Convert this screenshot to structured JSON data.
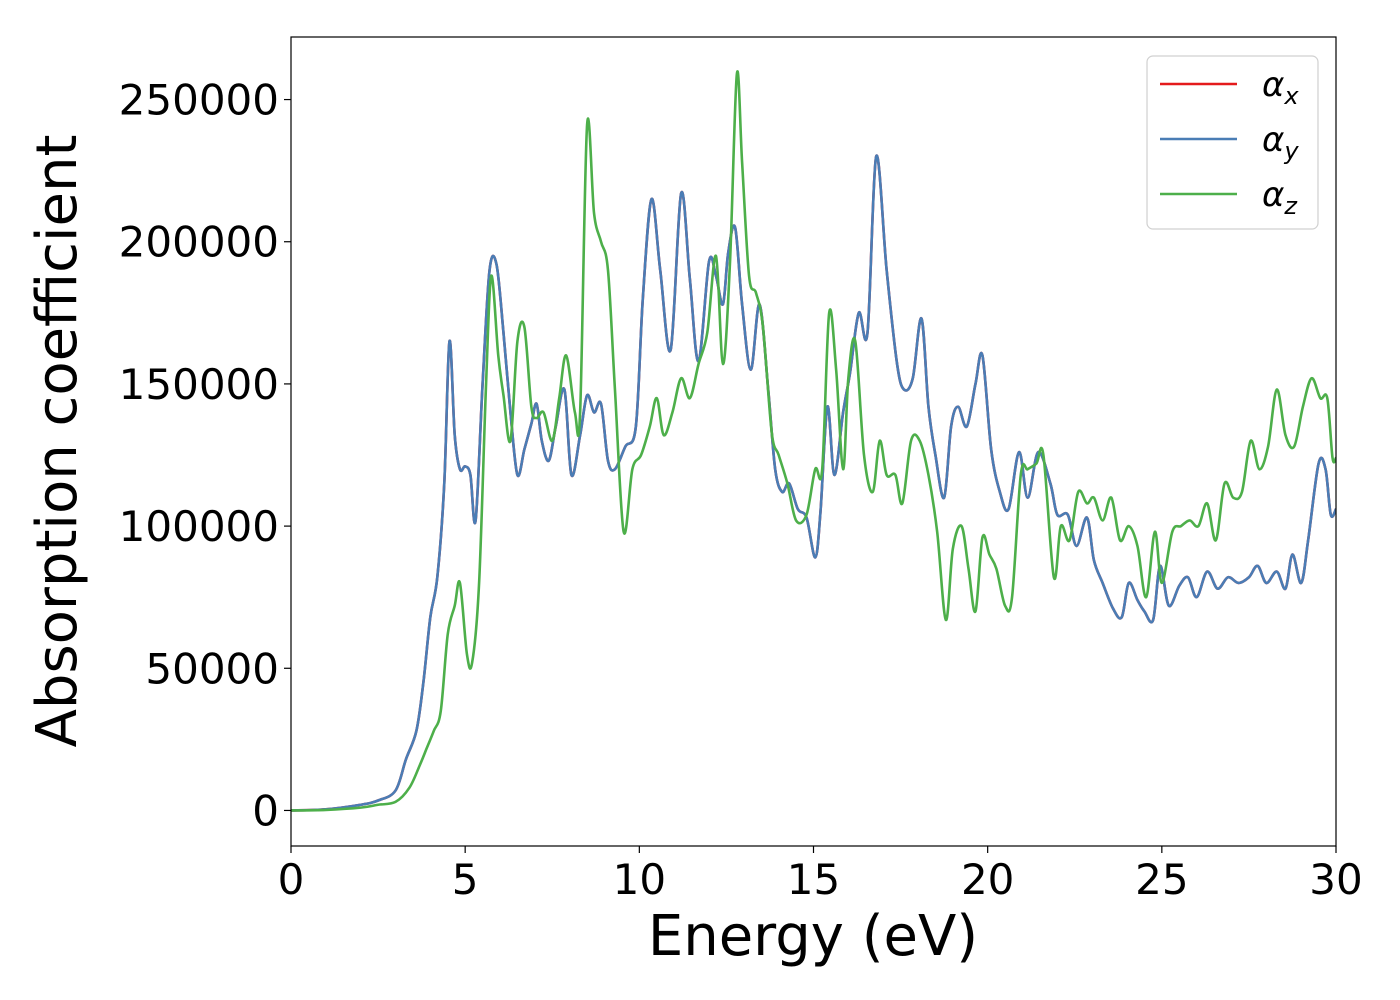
{
  "chart_data": {
    "type": "line",
    "xlabel": "Energy (eV)",
    "ylabel": "Absorption coefficient",
    "xlim": [
      0,
      30
    ],
    "ylim": [
      -12500,
      272000
    ],
    "x_ticks": [
      0,
      5,
      10,
      15,
      20,
      25,
      30
    ],
    "x_tick_labels": [
      "0",
      "5",
      "10",
      "15",
      "20",
      "25",
      "30"
    ],
    "y_ticks": [
      0,
      50000,
      100000,
      150000,
      200000,
      250000
    ],
    "y_tick_labels": [
      "0",
      "50000",
      "100000",
      "150000",
      "200000",
      "250000"
    ],
    "grid": false,
    "legend_position": "top-right",
    "series": [
      {
        "name": "α",
        "subscript": "x",
        "color": "#e41a1c",
        "x": [
          0,
          1,
          2,
          2.5,
          3.0,
          3.3,
          3.6,
          3.8,
          4.0,
          4.2,
          4.4,
          4.55,
          4.7,
          4.85,
          5.0,
          5.15,
          5.3,
          5.5,
          5.7,
          5.9,
          6.1,
          6.3,
          6.5,
          6.7,
          6.9,
          7.05,
          7.2,
          7.4,
          7.6,
          7.85,
          8.05,
          8.3,
          8.5,
          8.7,
          8.9,
          9.1,
          9.3,
          9.6,
          9.9,
          10.1,
          10.35,
          10.6,
          10.9,
          11.2,
          11.45,
          11.7,
          12.0,
          12.2,
          12.4,
          12.55,
          12.75,
          12.95,
          13.2,
          13.45,
          13.7,
          13.9,
          14.1,
          14.3,
          14.55,
          14.8,
          15.05,
          15.2,
          15.4,
          15.6,
          15.85,
          16.05,
          16.3,
          16.55,
          16.8,
          17.1,
          17.4,
          17.6,
          17.85,
          18.1,
          18.3,
          18.5,
          18.75,
          18.95,
          19.15,
          19.4,
          19.65,
          19.85,
          20.1,
          20.35,
          20.6,
          20.9,
          21.15,
          21.45,
          21.8,
          22.0,
          22.3,
          22.55,
          22.85,
          23.05,
          23.3,
          23.6,
          23.85,
          24.05,
          24.3,
          24.5,
          24.75,
          24.95,
          25.2,
          25.5,
          25.75,
          26.0,
          26.3,
          26.6,
          26.9,
          27.2,
          27.5,
          27.75,
          28.0,
          28.3,
          28.55,
          28.75,
          29.0,
          29.2,
          29.5,
          29.7,
          29.85,
          30.0
        ],
        "y": [
          0,
          400,
          2000,
          3500,
          7000,
          18000,
          28000,
          45000,
          68000,
          82000,
          115000,
          165000,
          132000,
          120000,
          121000,
          118000,
          102000,
          150000,
          190000,
          192000,
          168000,
          140000,
          118000,
          127000,
          136000,
          143000,
          130000,
          123000,
          135000,
          148000,
          118000,
          132000,
          146000,
          140000,
          143000,
          123000,
          120000,
          128000,
          135000,
          180000,
          215000,
          190000,
          162000,
          217000,
          187000,
          158000,
          193000,
          188000,
          178000,
          196000,
          205000,
          178000,
          155000,
          178000,
          148000,
          120000,
          112000,
          115000,
          106000,
          103000,
          89000,
          105000,
          142000,
          118000,
          140000,
          154000,
          175000,
          168000,
          230000,
          190000,
          157000,
          148000,
          152000,
          173000,
          142000,
          125000,
          110000,
          135000,
          142000,
          135000,
          150000,
          160000,
          127000,
          112000,
          106000,
          126000,
          110000,
          126000,
          115000,
          104000,
          104000,
          93000,
          103000,
          88000,
          80000,
          71000,
          68000,
          80000,
          74000,
          70000,
          67000,
          86000,
          72000,
          79000,
          82000,
          75000,
          84000,
          78000,
          82000,
          80000,
          82000,
          86000,
          80000,
          84000,
          78000,
          90000,
          80000,
          95000,
          122000,
          120000,
          104000,
          106000
        ]
      },
      {
        "name": "α",
        "subscript": "y",
        "color": "#4a7db5",
        "x": [
          0,
          1,
          2,
          2.5,
          3.0,
          3.3,
          3.6,
          3.8,
          4.0,
          4.2,
          4.4,
          4.55,
          4.7,
          4.85,
          5.0,
          5.15,
          5.3,
          5.5,
          5.7,
          5.9,
          6.1,
          6.3,
          6.5,
          6.7,
          6.9,
          7.05,
          7.2,
          7.4,
          7.6,
          7.85,
          8.05,
          8.3,
          8.5,
          8.7,
          8.9,
          9.1,
          9.3,
          9.6,
          9.9,
          10.1,
          10.35,
          10.6,
          10.9,
          11.2,
          11.45,
          11.7,
          12.0,
          12.2,
          12.4,
          12.55,
          12.75,
          12.95,
          13.2,
          13.45,
          13.7,
          13.9,
          14.1,
          14.3,
          14.55,
          14.8,
          15.05,
          15.2,
          15.4,
          15.6,
          15.85,
          16.05,
          16.3,
          16.55,
          16.8,
          17.1,
          17.4,
          17.6,
          17.85,
          18.1,
          18.3,
          18.5,
          18.75,
          18.95,
          19.15,
          19.4,
          19.65,
          19.85,
          20.1,
          20.35,
          20.6,
          20.9,
          21.15,
          21.45,
          21.8,
          22.0,
          22.3,
          22.55,
          22.85,
          23.05,
          23.3,
          23.6,
          23.85,
          24.05,
          24.3,
          24.5,
          24.75,
          24.95,
          25.2,
          25.5,
          25.75,
          26.0,
          26.3,
          26.6,
          26.9,
          27.2,
          27.5,
          27.75,
          28.0,
          28.3,
          28.55,
          28.75,
          29.0,
          29.2,
          29.5,
          29.7,
          29.85,
          30.0
        ],
        "y": [
          0,
          400,
          2000,
          3500,
          7000,
          18000,
          28000,
          45000,
          68000,
          82000,
          115000,
          165000,
          132000,
          120000,
          121000,
          118000,
          102000,
          150000,
          190000,
          192000,
          168000,
          140000,
          118000,
          127000,
          136000,
          143000,
          130000,
          123000,
          135000,
          148000,
          118000,
          132000,
          146000,
          140000,
          143000,
          123000,
          120000,
          128000,
          135000,
          180000,
          215000,
          190000,
          162000,
          217000,
          187000,
          158000,
          193000,
          188000,
          178000,
          196000,
          205000,
          178000,
          155000,
          178000,
          148000,
          120000,
          112000,
          115000,
          106000,
          103000,
          89000,
          105000,
          142000,
          118000,
          140000,
          154000,
          175000,
          168000,
          230000,
          190000,
          157000,
          148000,
          152000,
          173000,
          142000,
          125000,
          110000,
          135000,
          142000,
          135000,
          150000,
          160000,
          127000,
          112000,
          106000,
          126000,
          110000,
          126000,
          115000,
          104000,
          104000,
          93000,
          103000,
          88000,
          80000,
          71000,
          68000,
          80000,
          74000,
          70000,
          67000,
          86000,
          72000,
          79000,
          82000,
          75000,
          84000,
          78000,
          82000,
          80000,
          82000,
          86000,
          80000,
          84000,
          78000,
          90000,
          80000,
          95000,
          122000,
          120000,
          104000,
          106000
        ]
      },
      {
        "name": "α",
        "subscript": "z",
        "color": "#4daf4a",
        "x": [
          0,
          1,
          2,
          2.5,
          3.0,
          3.4,
          3.7,
          3.9,
          4.1,
          4.3,
          4.5,
          4.7,
          4.85,
          5.05,
          5.2,
          5.4,
          5.6,
          5.75,
          5.95,
          6.1,
          6.3,
          6.5,
          6.7,
          6.9,
          7.05,
          7.25,
          7.5,
          7.7,
          7.9,
          8.15,
          8.3,
          8.5,
          8.7,
          8.9,
          9.1,
          9.3,
          9.55,
          9.8,
          10.05,
          10.3,
          10.5,
          10.7,
          10.95,
          11.2,
          11.45,
          11.7,
          11.95,
          12.2,
          12.4,
          12.6,
          12.8,
          12.95,
          13.15,
          13.35,
          13.55,
          13.8,
          14.0,
          14.25,
          14.5,
          14.8,
          15.05,
          15.25,
          15.45,
          15.65,
          15.85,
          16.0,
          16.2,
          16.45,
          16.7,
          16.9,
          17.1,
          17.35,
          17.55,
          17.8,
          18.05,
          18.3,
          18.55,
          18.8,
          19.0,
          19.25,
          19.45,
          19.65,
          19.85,
          20.05,
          20.25,
          20.5,
          20.7,
          20.95,
          21.15,
          21.4,
          21.6,
          21.9,
          22.1,
          22.35,
          22.6,
          22.85,
          23.05,
          23.3,
          23.55,
          23.8,
          24.05,
          24.3,
          24.55,
          24.8,
          25.0,
          25.3,
          25.55,
          25.8,
          26.05,
          26.3,
          26.55,
          26.8,
          27.05,
          27.3,
          27.55,
          27.8,
          28.05,
          28.3,
          28.55,
          28.8,
          29.05,
          29.3,
          29.55,
          29.75,
          29.9,
          30.0
        ],
        "y": [
          0,
          200,
          1000,
          2000,
          3000,
          8000,
          16000,
          22000,
          28000,
          35000,
          62000,
          72000,
          80000,
          55000,
          52000,
          80000,
          150000,
          188000,
          160000,
          146000,
          130000,
          165000,
          170000,
          142000,
          138000,
          140000,
          130000,
          145000,
          160000,
          140000,
          140000,
          241000,
          210000,
          200000,
          190000,
          148000,
          98000,
          120000,
          125000,
          135000,
          145000,
          132000,
          140000,
          152000,
          145000,
          157000,
          168000,
          195000,
          157000,
          192000,
          259000,
          228000,
          188000,
          182000,
          170000,
          133000,
          125000,
          115000,
          102000,
          104000,
          120000,
          120000,
          175000,
          155000,
          120000,
          152000,
          165000,
          125000,
          112000,
          130000,
          118000,
          118000,
          108000,
          130000,
          130000,
          118000,
          98000,
          67000,
          92000,
          100000,
          85000,
          70000,
          96000,
          90000,
          85000,
          72000,
          75000,
          118000,
          120000,
          122000,
          125000,
          82000,
          100000,
          95000,
          112000,
          108000,
          110000,
          102000,
          110000,
          95000,
          100000,
          93000,
          75000,
          98000,
          80000,
          98000,
          100000,
          102000,
          100000,
          108000,
          95000,
          115000,
          110000,
          112000,
          130000,
          120000,
          128000,
          148000,
          132000,
          128000,
          142000,
          152000,
          145000,
          145000,
          124000,
          124000
        ]
      }
    ]
  }
}
